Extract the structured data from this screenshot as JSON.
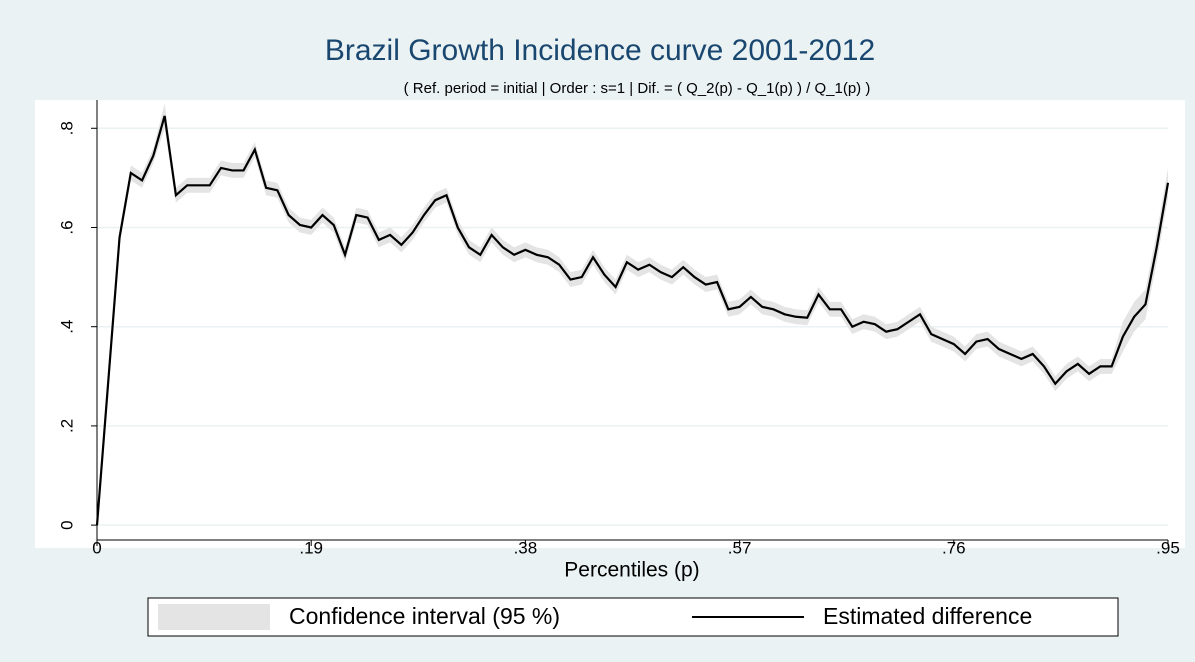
{
  "chart_data": {
    "type": "line",
    "title": "Brazil Growth Incidence curve 2001-2012",
    "subtitle": "( Ref. period = initial |  Order : s=1 | Dif. = ( Q_2(p) - Q_1(p) ) / Q_1(p) )",
    "x_label": "Percentiles (p)",
    "x": [
      0,
      0.01,
      0.02,
      0.03,
      0.04,
      0.05,
      0.06,
      0.07,
      0.08,
      0.09,
      0.1,
      0.11,
      0.12,
      0.13,
      0.14,
      0.15,
      0.16,
      0.17,
      0.18,
      0.19,
      0.2,
      0.21,
      0.22,
      0.23,
      0.24,
      0.25,
      0.26,
      0.27,
      0.28,
      0.29,
      0.3,
      0.31,
      0.32,
      0.33,
      0.34,
      0.35,
      0.36,
      0.37,
      0.38,
      0.39,
      0.4,
      0.41,
      0.42,
      0.43,
      0.44,
      0.45,
      0.46,
      0.47,
      0.48,
      0.49,
      0.5,
      0.51,
      0.52,
      0.53,
      0.54,
      0.55,
      0.56,
      0.57,
      0.58,
      0.59,
      0.6,
      0.61,
      0.62,
      0.63,
      0.64,
      0.65,
      0.66,
      0.67,
      0.68,
      0.69,
      0.7,
      0.71,
      0.72,
      0.73,
      0.74,
      0.75,
      0.76,
      0.77,
      0.78,
      0.79,
      0.8,
      0.81,
      0.82,
      0.83,
      0.84,
      0.85,
      0.86,
      0.87,
      0.88,
      0.89,
      0.9,
      0.91,
      0.92,
      0.93,
      0.94,
      0.95
    ],
    "series": [
      {
        "name": "Confidence interval (95 %)",
        "color": "#e4e4e4",
        "lower": [
          0,
          0.275,
          0.565,
          0.695,
          0.68,
          0.73,
          0.8,
          0.65,
          0.67,
          0.67,
          0.67,
          0.705,
          0.7,
          0.7,
          0.742,
          0.665,
          0.66,
          0.61,
          0.59,
          0.585,
          0.61,
          0.59,
          0.53,
          0.61,
          0.605,
          0.56,
          0.57,
          0.55,
          0.575,
          0.61,
          0.64,
          0.65,
          0.585,
          0.545,
          0.53,
          0.57,
          0.545,
          0.53,
          0.54,
          0.53,
          0.525,
          0.51,
          0.48,
          0.485,
          0.525,
          0.49,
          0.465,
          0.515,
          0.5,
          0.51,
          0.495,
          0.485,
          0.505,
          0.485,
          0.47,
          0.475,
          0.42,
          0.425,
          0.445,
          0.425,
          0.42,
          0.41,
          0.405,
          0.403,
          0.45,
          0.42,
          0.42,
          0.385,
          0.395,
          0.39,
          0.375,
          0.38,
          0.395,
          0.41,
          0.37,
          0.36,
          0.35,
          0.33,
          0.355,
          0.36,
          0.34,
          0.33,
          0.32,
          0.33,
          0.305,
          0.27,
          0.295,
          0.31,
          0.29,
          0.305,
          0.305,
          0.35,
          0.39,
          0.415,
          0.53,
          0.66
        ],
        "upper": [
          0,
          0.305,
          0.595,
          0.725,
          0.71,
          0.76,
          0.85,
          0.68,
          0.7,
          0.7,
          0.7,
          0.735,
          0.73,
          0.73,
          0.772,
          0.695,
          0.69,
          0.64,
          0.62,
          0.615,
          0.64,
          0.62,
          0.56,
          0.64,
          0.635,
          0.59,
          0.6,
          0.58,
          0.605,
          0.64,
          0.67,
          0.68,
          0.615,
          0.575,
          0.56,
          0.6,
          0.575,
          0.56,
          0.57,
          0.56,
          0.555,
          0.54,
          0.51,
          0.515,
          0.555,
          0.52,
          0.495,
          0.545,
          0.53,
          0.54,
          0.525,
          0.515,
          0.535,
          0.515,
          0.5,
          0.505,
          0.45,
          0.455,
          0.475,
          0.455,
          0.45,
          0.44,
          0.435,
          0.433,
          0.48,
          0.45,
          0.45,
          0.415,
          0.425,
          0.42,
          0.405,
          0.41,
          0.425,
          0.44,
          0.4,
          0.39,
          0.38,
          0.36,
          0.385,
          0.39,
          0.37,
          0.36,
          0.35,
          0.36,
          0.335,
          0.3,
          0.325,
          0.34,
          0.32,
          0.335,
          0.335,
          0.41,
          0.45,
          0.475,
          0.59,
          0.72
        ]
      },
      {
        "name": "Estimated difference",
        "color": "#000000",
        "values": [
          0,
          0.29,
          0.58,
          0.71,
          0.695,
          0.745,
          0.825,
          0.665,
          0.685,
          0.685,
          0.685,
          0.72,
          0.715,
          0.715,
          0.757,
          0.68,
          0.675,
          0.625,
          0.605,
          0.6,
          0.625,
          0.605,
          0.545,
          0.625,
          0.62,
          0.575,
          0.585,
          0.565,
          0.59,
          0.625,
          0.655,
          0.665,
          0.6,
          0.56,
          0.545,
          0.585,
          0.56,
          0.545,
          0.555,
          0.545,
          0.54,
          0.525,
          0.495,
          0.5,
          0.54,
          0.505,
          0.48,
          0.53,
          0.515,
          0.525,
          0.51,
          0.5,
          0.52,
          0.5,
          0.485,
          0.49,
          0.435,
          0.44,
          0.46,
          0.44,
          0.435,
          0.425,
          0.42,
          0.418,
          0.465,
          0.435,
          0.435,
          0.4,
          0.41,
          0.405,
          0.39,
          0.395,
          0.41,
          0.425,
          0.385,
          0.375,
          0.365,
          0.345,
          0.37,
          0.375,
          0.355,
          0.345,
          0.335,
          0.345,
          0.32,
          0.285,
          0.31,
          0.325,
          0.305,
          0.32,
          0.32,
          0.38,
          0.42,
          0.445,
          0.56,
          0.69
        ]
      }
    ],
    "xlim": [
      0,
      0.95
    ],
    "ylim": [
      -0.03,
      0.857
    ],
    "xticks": [
      0,
      {
        "value": 0.19,
        "label": ".19"
      },
      {
        "value": 0.38,
        "label": ".38"
      },
      {
        "value": 0.57,
        "label": ".57"
      },
      {
        "value": 0.76,
        "label": ".76"
      },
      {
        "value": 0.95,
        "label": ".95"
      }
    ],
    "yticks": [
      0,
      {
        "value": 0.2,
        "label": ".2"
      },
      {
        "value": 0.4,
        "label": ".4"
      },
      {
        "value": 0.6,
        "label": ".6"
      },
      {
        "value": 0.8,
        "label": ".8"
      }
    ],
    "grid": true,
    "legend": "bottom"
  }
}
